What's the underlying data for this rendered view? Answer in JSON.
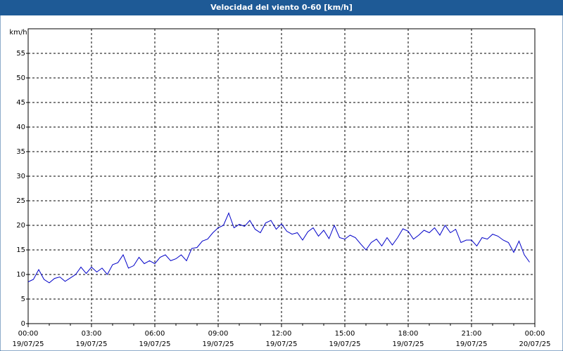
{
  "chart_data": {
    "type": "line",
    "title": "Velocidad del viento 0-60 [km/h]",
    "y_label": "km/h",
    "x": [
      0,
      0.25,
      0.5,
      0.75,
      1,
      1.25,
      1.5,
      1.75,
      2,
      2.25,
      2.5,
      2.75,
      3,
      3.25,
      3.5,
      3.75,
      4,
      4.25,
      4.5,
      4.75,
      5,
      5.25,
      5.5,
      5.75,
      6,
      6.25,
      6.5,
      6.75,
      7,
      7.25,
      7.5,
      7.75,
      8,
      8.25,
      8.5,
      8.75,
      9,
      9.25,
      9.5,
      9.75,
      10,
      10.25,
      10.5,
      10.75,
      11,
      11.25,
      11.5,
      11.75,
      12,
      12.25,
      12.5,
      12.75,
      13,
      13.25,
      13.5,
      13.75,
      14,
      14.25,
      14.5,
      14.75,
      15,
      15.25,
      15.5,
      15.75,
      16,
      16.25,
      16.5,
      16.75,
      17,
      17.25,
      17.5,
      17.75,
      18,
      18.25,
      18.5,
      18.75,
      19,
      19.25,
      19.5,
      19.75,
      20,
      20.25,
      20.5,
      20.75,
      21,
      21.25,
      21.5,
      21.75,
      22,
      22.25,
      22.5,
      22.75,
      23,
      23.25,
      23.5,
      23.75
    ],
    "series": [
      {
        "name": "Velocidad del viento",
        "color": "#0000c8",
        "values": [
          8.5,
          9,
          11,
          9,
          8.3,
          9.2,
          9.5,
          8.6,
          9.3,
          10,
          11.5,
          10.2,
          11.5,
          10.5,
          11.3,
          10,
          12,
          12.4,
          14,
          11.3,
          11.8,
          13.5,
          12.2,
          12.8,
          12.2,
          13.5,
          14,
          12.8,
          13.2,
          14,
          12.8,
          15.3,
          15.5,
          16.8,
          17.2,
          18.5,
          19.5,
          20,
          22.5,
          19.5,
          20.2,
          19.8,
          21,
          19.2,
          18.5,
          20.5,
          21,
          19.2,
          20.3,
          18.8,
          18.2,
          18.5,
          17,
          18.7,
          19.5,
          17.8,
          19,
          17.3,
          20,
          17.5,
          17.2,
          18,
          17.5,
          16.2,
          15,
          16.5,
          17.2,
          15.8,
          17.5,
          16,
          17.5,
          19.3,
          18.8,
          17.2,
          18,
          19,
          18.5,
          19.5,
          18,
          20,
          18.5,
          19.2,
          16.5,
          17,
          17,
          15.8,
          17.5,
          17.2,
          18.2,
          17.8,
          17,
          16.5,
          14.5,
          16.8,
          14,
          12.5
        ]
      }
    ],
    "xlim": [
      0,
      24
    ],
    "xticks": [
      {
        "value": 0,
        "label": "00:00",
        "date": "19/07/25"
      },
      {
        "value": 3,
        "label": "03:00",
        "date": "19/07/25"
      },
      {
        "value": 6,
        "label": "06:00",
        "date": "19/07/25"
      },
      {
        "value": 9,
        "label": "09:00",
        "date": "19/07/25"
      },
      {
        "value": 12,
        "label": "12:00",
        "date": "19/07/25"
      },
      {
        "value": 15,
        "label": "15:00",
        "date": "19/07/25"
      },
      {
        "value": 18,
        "label": "18:00",
        "date": "19/07/25"
      },
      {
        "value": 21,
        "label": "21:00",
        "date": "19/07/25"
      },
      {
        "value": 24,
        "label": "00:00",
        "date": "20/07/25"
      }
    ],
    "ylim": [
      0,
      60
    ],
    "yticks": [
      0,
      5,
      10,
      15,
      20,
      25,
      30,
      35,
      40,
      45,
      50,
      55
    ],
    "grid": true
  }
}
